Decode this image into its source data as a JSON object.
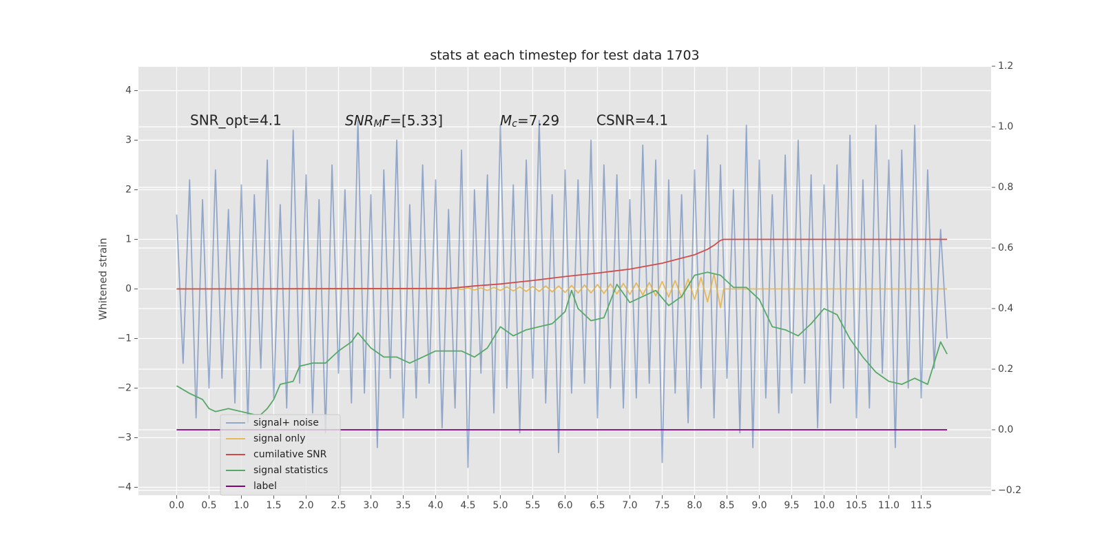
{
  "chart_data": {
    "type": "line",
    "title": "stats at each timestep for test data 1703",
    "y_label": "Whitened strain",
    "annotations": [
      "SNR_opt=4.1",
      {
        "math": [
          "SNR",
          "M",
          "F"
        ],
        "text": "=[5.33]"
      },
      {
        "math": [
          "M",
          "c"
        ],
        "text": "=7.29"
      },
      "CSNR=4.1"
    ],
    "xlim": [
      -0.59,
      12.58
    ],
    "ylim": [
      -4.16,
      4.48
    ],
    "y2lim": [
      -0.216,
      1.198
    ],
    "xticks": [
      {
        "value": 0,
        "label": "0.0"
      },
      {
        "value": 0.5,
        "label": "0.5"
      },
      {
        "value": 1,
        "label": "1.0"
      },
      {
        "value": 1.5,
        "label": "1.5"
      },
      {
        "value": 2,
        "label": "2.0"
      },
      {
        "value": 2.5,
        "label": "2.5"
      },
      {
        "value": 3,
        "label": "3.0"
      },
      {
        "value": 3.5,
        "label": "3.5"
      },
      {
        "value": 4,
        "label": "4.0"
      },
      {
        "value": 4.5,
        "label": "4.5"
      },
      {
        "value": 5,
        "label": "5.0"
      },
      {
        "value": 5.5,
        "label": "5.5"
      },
      {
        "value": 6,
        "label": "6.0"
      },
      {
        "value": 6.5,
        "label": "6.5"
      },
      {
        "value": 7,
        "label": "7.0"
      },
      {
        "value": 7.5,
        "label": "7.5"
      },
      {
        "value": 8,
        "label": "8.0"
      },
      {
        "value": 8.5,
        "label": "8.5"
      },
      {
        "value": 9,
        "label": "9.0"
      },
      {
        "value": 9.5,
        "label": "9.5"
      },
      {
        "value": 10,
        "label": "10.0"
      },
      {
        "value": 10.5,
        "label": "10.5"
      },
      {
        "value": 11,
        "label": "11.0"
      },
      {
        "value": 11.5,
        "label": "11.5"
      }
    ],
    "yticks": [
      {
        "value": -4,
        "label": "−4"
      },
      {
        "value": -3,
        "label": "−3"
      },
      {
        "value": -2,
        "label": "−2"
      },
      {
        "value": -1,
        "label": "−1"
      },
      0,
      1,
      2,
      3,
      4
    ],
    "y2ticks": [
      {
        "value": -0.2,
        "label": "−0.2"
      },
      {
        "value": 0,
        "label": "0.0"
      },
      {
        "value": 0.2,
        "label": "0.2"
      },
      {
        "value": 0.4,
        "label": "0.4"
      },
      {
        "value": 0.6,
        "label": "0.6"
      },
      {
        "value": 0.8,
        "label": "0.8"
      },
      {
        "value": 1,
        "label": "1.0"
      },
      {
        "value": 1.2,
        "label": "1.2"
      }
    ],
    "grid": true,
    "legend": "lower left",
    "series": [
      {
        "name": "signal+ noise",
        "color": "#4c72b0",
        "alpha": 0.55,
        "axis": "y",
        "x": [
          0,
          0.1,
          0.2,
          0.3,
          0.4,
          0.5,
          0.6,
          0.7,
          0.8,
          0.9,
          1,
          1.1,
          1.2,
          1.3,
          1.4,
          1.5,
          1.6,
          1.7,
          1.8,
          1.9,
          2,
          2.1,
          2.2,
          2.3,
          2.4,
          2.5,
          2.6,
          2.7,
          2.8,
          2.9,
          3,
          3.1,
          3.2,
          3.3,
          3.4,
          3.5,
          3.6,
          3.7,
          3.8,
          3.9,
          4,
          4.1,
          4.2,
          4.3,
          4.4,
          4.5,
          4.6,
          4.7,
          4.8,
          4.9,
          5,
          5.1,
          5.2,
          5.3,
          5.4,
          5.5,
          5.6,
          5.7,
          5.8,
          5.9,
          6,
          6.1,
          6.2,
          6.3,
          6.4,
          6.5,
          6.6,
          6.7,
          6.8,
          6.9,
          7,
          7.1,
          7.2,
          7.3,
          7.4,
          7.5,
          7.6,
          7.7,
          7.8,
          7.9,
          8,
          8.1,
          8.2,
          8.3,
          8.4,
          8.5,
          8.6,
          8.7,
          8.8,
          8.9,
          9,
          9.1,
          9.2,
          9.3,
          9.4,
          9.5,
          9.6,
          9.7,
          9.8,
          9.9,
          10,
          10.1,
          10.2,
          10.3,
          10.4,
          10.5,
          10.6,
          10.7,
          10.8,
          10.9,
          11,
          11.1,
          11.2,
          11.3,
          11.4,
          11.5,
          11.6,
          11.7,
          11.8,
          11.9
        ],
        "values": [
          1.5,
          -1.5,
          2.2,
          -2.6,
          1.8,
          -2.0,
          2.4,
          -1.8,
          1.6,
          -2.3,
          2.1,
          -2.7,
          1.9,
          -1.6,
          2.6,
          -2.2,
          1.7,
          -2.4,
          3.2,
          -1.9,
          2.3,
          -2.5,
          1.8,
          -2.9,
          2.5,
          -1.7,
          2.0,
          -2.3,
          3.4,
          -2.1,
          1.9,
          -3.2,
          2.4,
          -1.8,
          3.0,
          -2.6,
          1.7,
          -2.2,
          2.5,
          -1.9,
          2.2,
          -2.8,
          1.6,
          -2.4,
          2.8,
          -3.6,
          2.0,
          -1.7,
          2.3,
          -2.5,
          3.3,
          -2.0,
          2.1,
          -2.9,
          2.6,
          -1.8,
          3.4,
          -2.3,
          1.9,
          -3.3,
          2.4,
          -2.1,
          2.2,
          -1.9,
          3.0,
          -2.6,
          2.5,
          -2.0,
          2.3,
          -2.4,
          1.8,
          -2.2,
          2.9,
          -1.9,
          2.6,
          -3.5,
          2.2,
          -2.1,
          1.9,
          -2.7,
          2.4,
          -2.0,
          3.1,
          -2.6,
          2.5,
          -1.8,
          2.0,
          -2.9,
          3.3,
          -3.2,
          2.6,
          -2.2,
          1.9,
          -2.5,
          2.7,
          -2.1,
          3.0,
          -1.9,
          2.3,
          -2.8,
          2.1,
          -2.3,
          2.5,
          -2.0,
          3.1,
          -2.6,
          2.2,
          -2.4,
          3.3,
          -1.7,
          2.6,
          -3.2,
          2.8,
          -2.0,
          3.3,
          -2.2,
          2.4,
          -1.6,
          1.2,
          -1.0
        ]
      },
      {
        "name": "signal only",
        "color": "#e5ae38",
        "alpha": 0.8,
        "axis": "y",
        "x": [
          0,
          4.2,
          4.3,
          4.4,
          4.5,
          4.6,
          4.7,
          4.8,
          4.9,
          5,
          5.1,
          5.2,
          5.3,
          5.4,
          5.5,
          5.6,
          5.7,
          5.8,
          5.9,
          6,
          6.1,
          6.2,
          6.3,
          6.4,
          6.5,
          6.6,
          6.7,
          6.8,
          6.9,
          7,
          7.1,
          7.2,
          7.3,
          7.4,
          7.5,
          7.6,
          7.7,
          7.8,
          7.9,
          8,
          8.1,
          8.2,
          8.3,
          8.4,
          8.45,
          11.9
        ],
        "values": [
          0,
          0,
          0.01,
          -0.01,
          0.02,
          -0.02,
          0.02,
          -0.03,
          0.03,
          -0.03,
          0.04,
          -0.04,
          0.04,
          -0.05,
          0.05,
          -0.05,
          0.06,
          -0.06,
          0.06,
          -0.07,
          0.07,
          -0.08,
          0.08,
          -0.08,
          0.09,
          -0.09,
          0.1,
          -0.1,
          0.11,
          -0.11,
          0.12,
          -0.12,
          0.13,
          -0.14,
          0.15,
          -0.16,
          0.17,
          -0.18,
          0.2,
          -0.21,
          0.23,
          -0.26,
          0.3,
          -0.38,
          0,
          0
        ]
      },
      {
        "name": "cumilative SNR",
        "color": "#d04a4a",
        "alpha": 1,
        "axis": "y",
        "x": [
          0,
          4.2,
          4.6,
          5,
          5.5,
          6,
          6.5,
          7,
          7.5,
          8,
          8.2,
          8.3,
          8.4,
          8.45,
          11.9
        ],
        "values": [
          0,
          0.01,
          0.06,
          0.1,
          0.17,
          0.25,
          0.32,
          0.4,
          0.52,
          0.69,
          0.8,
          0.88,
          0.98,
          1.0,
          1.0
        ]
      },
      {
        "name": "signal statistics",
        "color": "#55a868",
        "alpha": 1,
        "axis": "y2",
        "x": [
          0,
          0.2,
          0.4,
          0.5,
          0.6,
          0.8,
          1,
          1.2,
          1.3,
          1.4,
          1.5,
          1.6,
          1.8,
          1.9,
          2.1,
          2.3,
          2.5,
          2.7,
          2.8,
          3,
          3.2,
          3.4,
          3.6,
          3.8,
          4,
          4.2,
          4.4,
          4.6,
          4.8,
          5,
          5.2,
          5.4,
          5.6,
          5.8,
          6,
          6.1,
          6.2,
          6.4,
          6.6,
          6.8,
          7,
          7.2,
          7.4,
          7.6,
          7.8,
          8,
          8.2,
          8.4,
          8.6,
          8.8,
          9,
          9.2,
          9.4,
          9.6,
          9.8,
          10,
          10.2,
          10.4,
          10.6,
          10.8,
          11,
          11.2,
          11.4,
          11.6,
          11.8,
          11.9
        ],
        "values": [
          0.145,
          0.12,
          0.1,
          0.07,
          0.06,
          0.07,
          0.06,
          0.05,
          0.05,
          0.07,
          0.1,
          0.15,
          0.16,
          0.21,
          0.22,
          0.22,
          0.26,
          0.29,
          0.32,
          0.27,
          0.24,
          0.24,
          0.22,
          0.24,
          0.26,
          0.26,
          0.26,
          0.24,
          0.27,
          0.34,
          0.31,
          0.33,
          0.34,
          0.35,
          0.39,
          0.46,
          0.4,
          0.36,
          0.37,
          0.48,
          0.42,
          0.44,
          0.46,
          0.41,
          0.44,
          0.51,
          0.52,
          0.51,
          0.47,
          0.47,
          0.43,
          0.34,
          0.33,
          0.31,
          0.35,
          0.4,
          0.38,
          0.3,
          0.24,
          0.19,
          0.16,
          0.15,
          0.17,
          0.15,
          0.29,
          0.25
        ]
      },
      {
        "name": "label",
        "color": "#800080",
        "alpha": 1,
        "axis": "y2",
        "x": [
          0,
          11.9
        ],
        "values": [
          0,
          0
        ]
      }
    ]
  }
}
